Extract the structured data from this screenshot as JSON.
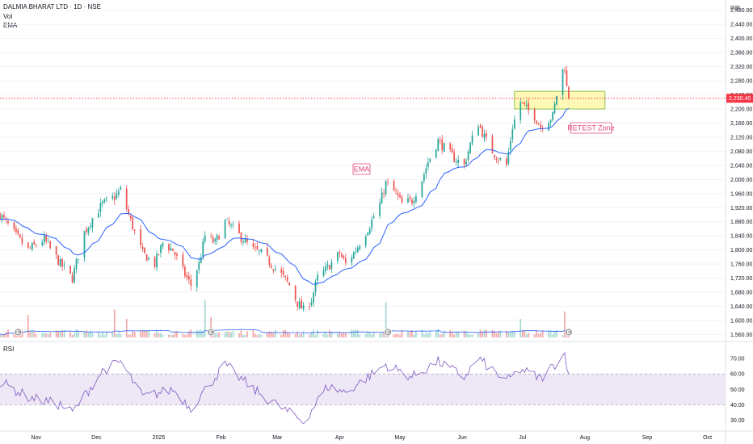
{
  "header": {
    "symbol_line": "DALMIA BHARAT LTD · 1D · NSE",
    "vol_label": "Vol",
    "ema_label": "EMA",
    "currency": "INR",
    "rsi_label": "RSI"
  },
  "colors": {
    "up": "#26a69a",
    "down": "#ef5350",
    "vol_up": "#a6d9d3",
    "vol_down": "#f4a9a7",
    "ema": "#2962ff",
    "rsi": "#7e57c2",
    "rsi_band": "#ede7f6",
    "price_line": "#f23645",
    "zone_fill": "#fff59d",
    "zone_border": "#8bc34a",
    "annotation": "#e0457b"
  },
  "chart_data": {
    "type": "candlestick",
    "price_axis": {
      "ticks": [
        1560,
        1600,
        1640,
        1680,
        1720,
        1760,
        1800,
        1840,
        1880,
        1920,
        1960,
        2000,
        2040,
        2080,
        2120,
        2160,
        2200,
        2240,
        2280,
        2320,
        2360,
        2400,
        2440,
        2480
      ],
      "tick_labels": [
        "1,560.00",
        "1,600.00",
        "1,640.00",
        "1,680.00",
        "1,720.00",
        "1,760.00",
        "1,800.00",
        "1,840.00",
        "1,880.00",
        "1,920.00",
        "1,960.00",
        "2,000.00",
        "2,040.00",
        "2,080.00",
        "2,120.00",
        "2,160.00",
        "2,200.00",
        "2,240.00",
        "2,280.00",
        "2,320.00",
        "2,360.00",
        "2,400.00",
        "2,440.00",
        "2,480.00"
      ],
      "last_price": 2230.4,
      "last_price_label": "2,230.40"
    },
    "rsi_axis": {
      "ticks": [
        30,
        40,
        50,
        60,
        70
      ],
      "tick_labels": [
        "30.00",
        "40.00",
        "50.00",
        "60.00",
        "70.00"
      ],
      "band": [
        40,
        60
      ]
    },
    "time_axis": {
      "labels": [
        "Nov",
        "Dec",
        "2025",
        "Feb",
        "Mar",
        "Apr",
        "May",
        "Jun",
        "Jul",
        "Aug",
        "Sep",
        "Oct"
      ],
      "start": "2024-10-14",
      "end": "2025-10-10"
    },
    "key_points": [
      {
        "date": "2024-10-14",
        "close": 1900
      },
      {
        "date": "2024-10-22",
        "close": 1840
      },
      {
        "date": "2024-10-28",
        "close": 1800
      },
      {
        "date": "2024-11-05",
        "close": 1830
      },
      {
        "date": "2024-11-13",
        "close": 1760
      },
      {
        "date": "2024-11-19",
        "close": 1720
      },
      {
        "date": "2024-11-25",
        "close": 1850
      },
      {
        "date": "2024-11-29",
        "close": 1890
      },
      {
        "date": "2024-12-04",
        "close": 1930
      },
      {
        "date": "2024-12-10",
        "close": 1950
      },
      {
        "date": "2024-12-13",
        "close": 1970
      },
      {
        "date": "2024-12-17",
        "close": 1900
      },
      {
        "date": "2024-12-20",
        "close": 1850
      },
      {
        "date": "2024-12-24",
        "close": 1790
      },
      {
        "date": "2024-12-30",
        "close": 1760
      },
      {
        "date": "2025-01-03",
        "close": 1820
      },
      {
        "date": "2025-01-08",
        "close": 1800
      },
      {
        "date": "2025-01-13",
        "close": 1740
      },
      {
        "date": "2025-01-17",
        "close": 1700
      },
      {
        "date": "2025-01-21",
        "close": 1760
      },
      {
        "date": "2025-01-24",
        "close": 1840
      },
      {
        "date": "2025-01-29",
        "close": 1820
      },
      {
        "date": "2025-02-03",
        "close": 1880
      },
      {
        "date": "2025-02-07",
        "close": 1860
      },
      {
        "date": "2025-02-12",
        "close": 1830
      },
      {
        "date": "2025-02-17",
        "close": 1800
      },
      {
        "date": "2025-02-21",
        "close": 1790
      },
      {
        "date": "2025-02-26",
        "close": 1760
      },
      {
        "date": "2025-03-03",
        "close": 1730
      },
      {
        "date": "2025-03-07",
        "close": 1700
      },
      {
        "date": "2025-03-11",
        "close": 1650
      },
      {
        "date": "2025-03-14",
        "close": 1630
      },
      {
        "date": "2025-03-18",
        "close": 1660
      },
      {
        "date": "2025-03-21",
        "close": 1720
      },
      {
        "date": "2025-03-26",
        "close": 1750
      },
      {
        "date": "2025-04-01",
        "close": 1790
      },
      {
        "date": "2025-04-04",
        "close": 1760
      },
      {
        "date": "2025-04-09",
        "close": 1800
      },
      {
        "date": "2025-04-15",
        "close": 1860
      },
      {
        "date": "2025-04-21",
        "close": 1930
      },
      {
        "date": "2025-04-24",
        "close": 1990
      },
      {
        "date": "2025-04-29",
        "close": 1960
      },
      {
        "date": "2025-05-02",
        "close": 1930
      },
      {
        "date": "2025-05-07",
        "close": 1940
      },
      {
        "date": "2025-05-12",
        "close": 2000
      },
      {
        "date": "2025-05-15",
        "close": 2050
      },
      {
        "date": "2025-05-20",
        "close": 2110
      },
      {
        "date": "2025-05-23",
        "close": 2090
      },
      {
        "date": "2025-05-28",
        "close": 2060
      },
      {
        "date": "2025-06-02",
        "close": 2040
      },
      {
        "date": "2025-06-05",
        "close": 2100
      },
      {
        "date": "2025-06-09",
        "close": 2160
      },
      {
        "date": "2025-06-12",
        "close": 2120
      },
      {
        "date": "2025-06-16",
        "close": 2080
      },
      {
        "date": "2025-06-19",
        "close": 2060
      },
      {
        "date": "2025-06-23",
        "close": 2040
      },
      {
        "date": "2025-06-26",
        "close": 2150
      },
      {
        "date": "2025-06-30",
        "close": 2220
      },
      {
        "date": "2025-07-03",
        "close": 2200
      },
      {
        "date": "2025-07-07",
        "close": 2180
      },
      {
        "date": "2025-07-10",
        "close": 2150
      },
      {
        "date": "2025-07-14",
        "close": 2170
      },
      {
        "date": "2025-07-16",
        "close": 2180
      },
      {
        "date": "2025-07-18",
        "close": 2240
      },
      {
        "date": "2025-07-21",
        "close": 2310
      },
      {
        "date": "2025-07-22",
        "close": 2320
      },
      {
        "date": "2025-07-23",
        "close": 2260
      },
      {
        "date": "2025-07-24",
        "close": 2230.4
      }
    ],
    "rsi_points": [
      {
        "date": "2024-10-14",
        "value": 55
      },
      {
        "date": "2024-10-28",
        "value": 45
      },
      {
        "date": "2024-11-13",
        "value": 40
      },
      {
        "date": "2024-11-19",
        "value": 35
      },
      {
        "date": "2024-12-04",
        "value": 62
      },
      {
        "date": "2024-12-13",
        "value": 68
      },
      {
        "date": "2024-12-24",
        "value": 45
      },
      {
        "date": "2025-01-08",
        "value": 50
      },
      {
        "date": "2025-01-17",
        "value": 38
      },
      {
        "date": "2025-02-03",
        "value": 66
      },
      {
        "date": "2025-02-17",
        "value": 50
      },
      {
        "date": "2025-03-03",
        "value": 38
      },
      {
        "date": "2025-03-14",
        "value": 29
      },
      {
        "date": "2025-03-26",
        "value": 52
      },
      {
        "date": "2025-04-04",
        "value": 48
      },
      {
        "date": "2025-04-24",
        "value": 66
      },
      {
        "date": "2025-05-07",
        "value": 58
      },
      {
        "date": "2025-05-20",
        "value": 68
      },
      {
        "date": "2025-06-02",
        "value": 58
      },
      {
        "date": "2025-06-09",
        "value": 70
      },
      {
        "date": "2025-06-23",
        "value": 55
      },
      {
        "date": "2025-06-30",
        "value": 63
      },
      {
        "date": "2025-07-10",
        "value": 57
      },
      {
        "date": "2025-07-22",
        "value": 73
      },
      {
        "date": "2025-07-24",
        "value": 60
      }
    ],
    "volume_spikes": [
      {
        "date": "2024-10-28",
        "level": 0.6
      },
      {
        "date": "2024-12-10",
        "level": 0.75
      },
      {
        "date": "2024-12-16",
        "level": 0.5
      },
      {
        "date": "2025-01-24",
        "level": 1.0
      },
      {
        "date": "2025-01-27",
        "level": 0.55
      },
      {
        "date": "2025-04-24",
        "level": 0.95
      },
      {
        "date": "2025-06-30",
        "level": 0.5
      },
      {
        "date": "2025-07-22",
        "level": 0.7
      }
    ],
    "earnings_dates": [
      "2024-10-23",
      "2025-01-27",
      "2025-04-25",
      "2025-07-24"
    ],
    "ema_period": 20,
    "retest_zone": {
      "low": 2200,
      "high": 2250,
      "start": "2025-06-27",
      "end": "2025-08-11"
    }
  },
  "annotations": {
    "ema_label": "EMA",
    "retest_label": "RETEST Zone"
  }
}
